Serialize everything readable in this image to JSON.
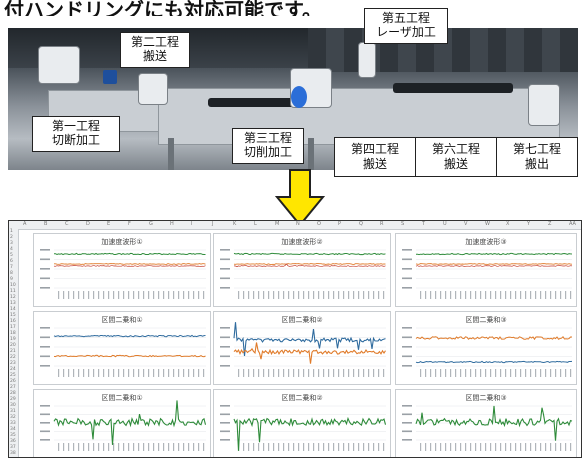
{
  "header": {
    "text": "付ハンドリングにも対応可能です。"
  },
  "processes": {
    "p1": {
      "line1": "第一工程",
      "line2": "切断加工"
    },
    "p2": {
      "line1": "第二工程",
      "line2": "搬送"
    },
    "p3": {
      "line1": "第三工程",
      "line2": "切削加工"
    },
    "p5": {
      "line1": "第五工程",
      "line2": "レーザ加工"
    },
    "p4": {
      "line1": "第四工程",
      "line2": "搬送"
    },
    "p6": {
      "line1": "第六工程",
      "line2": "搬送"
    },
    "p7": {
      "line1": "第七工程",
      "line2": "搬出"
    }
  },
  "colors": {
    "arrow_fill": "#ffe600",
    "arrow_stroke": "#222222",
    "green": "#2e8b3a",
    "orange": "#e07b2a",
    "blue": "#2f6b9e",
    "red": "#c0392b"
  },
  "sheet": {
    "row_numbers": [
      "1",
      "2",
      "3",
      "4",
      "5",
      "6",
      "7",
      "8",
      "9",
      "10",
      "11",
      "12",
      "13",
      "14",
      "15",
      "16",
      "17",
      "18",
      "19",
      "20",
      "21",
      "22",
      "23",
      "24",
      "25",
      "26",
      "27",
      "28",
      "29",
      "30",
      "31",
      "32",
      "33",
      "34",
      "35",
      "36",
      "37",
      "38"
    ],
    "columns": [
      "A",
      "B",
      "C",
      "D",
      "E",
      "F",
      "G",
      "H",
      "I",
      "J",
      "K",
      "L",
      "M",
      "N",
      "O",
      "P",
      "Q",
      "R",
      "S",
      "T",
      "U",
      "V",
      "W",
      "X",
      "Y",
      "Z",
      "AA"
    ]
  },
  "charts": {
    "c1": {
      "title": "加速度波形①"
    },
    "c2": {
      "title": "加速度波形②"
    },
    "c3": {
      "title": "加速度波形③"
    },
    "c4": {
      "title": "区間二乗和①"
    },
    "c5": {
      "title": "区間二乗和②"
    },
    "c6": {
      "title": "区間二乗和③"
    },
    "c7": {
      "title": "区間二乗和①"
    },
    "c8": {
      "title": "区間二乗和②"
    },
    "c9": {
      "title": "区間二乗和③"
    }
  }
}
